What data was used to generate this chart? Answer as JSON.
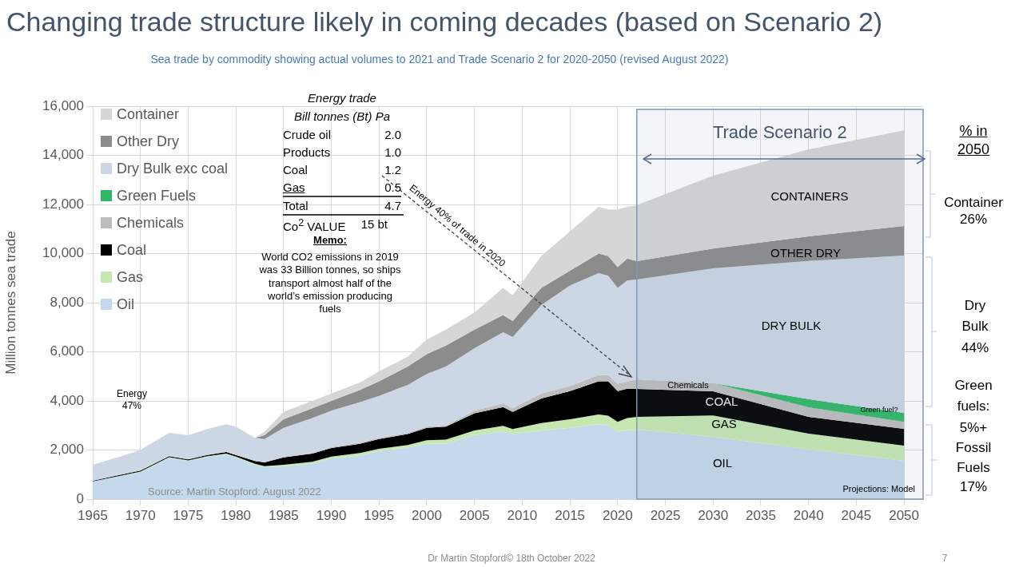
{
  "chart_data": {
    "type": "area",
    "title": "Changing trade structure likely in coming decades (based on Scenario 2)",
    "subtitle": "Sea trade by commodity showing actual volumes to 2021 and Trade Scenario 2 for 2020-2050 (revised August 2022)",
    "ylabel": "Million tonnes sea trade",
    "stacked": true,
    "grid": true,
    "legend": "top left",
    "x": [
      1965,
      1968,
      1970,
      1973,
      1975,
      1977,
      1979,
      1980,
      1982,
      1983,
      1985,
      1988,
      1990,
      1993,
      1995,
      1998,
      2000,
      2002,
      2005,
      2008,
      2009,
      2012,
      2015,
      2018,
      2019,
      2020,
      2021,
      2022,
      2030,
      2040,
      2050
    ],
    "series": [
      {
        "name": "Oil",
        "color": "#c5d9ec",
        "values": [
          720,
          950,
          1100,
          1680,
          1550,
          1720,
          1820,
          1700,
          1400,
          1300,
          1330,
          1450,
          1650,
          1780,
          1950,
          2100,
          2250,
          2250,
          2600,
          2750,
          2650,
          2800,
          2900,
          3050,
          3000,
          2750,
          2800,
          2830,
          2540,
          2020,
          1560
        ]
      },
      {
        "name": "Gas",
        "color": "#c6e8b0",
        "values": [
          0,
          10,
          20,
          30,
          30,
          30,
          30,
          30,
          40,
          40,
          70,
          70,
          80,
          100,
          100,
          100,
          150,
          170,
          200,
          230,
          200,
          300,
          350,
          400,
          400,
          400,
          500,
          520,
          870,
          650,
          620
        ]
      },
      {
        "name": "Coal",
        "color": "#000000",
        "values": [
          30,
          40,
          40,
          40,
          40,
          50,
          70,
          70,
          110,
          160,
          300,
          330,
          350,
          370,
          400,
          450,
          500,
          530,
          700,
          770,
          700,
          1000,
          1150,
          1350,
          1400,
          1250,
          1200,
          1140,
          980,
          680,
          680
        ]
      },
      {
        "name": "Chemicals",
        "color": "#bdbdbd",
        "values": [
          null,
          null,
          null,
          null,
          null,
          null,
          null,
          null,
          null,
          0,
          30,
          30,
          40,
          50,
          50,
          50,
          50,
          50,
          100,
          150,
          150,
          200,
          200,
          250,
          250,
          300,
          300,
          390,
          330,
          390,
          290
        ]
      },
      {
        "name": "Green Fuels",
        "color": "#2fb866",
        "values": [
          null,
          null,
          null,
          null,
          null,
          null,
          null,
          null,
          null,
          null,
          null,
          null,
          null,
          null,
          null,
          null,
          null,
          null,
          null,
          null,
          null,
          null,
          null,
          null,
          null,
          null,
          null,
          null,
          0,
          330,
          360
        ]
      },
      {
        "name": "Dry Bulk exc coal",
        "color": "#ccd6e4",
        "values": [
          650,
          750,
          840,
          950,
          980,
          1050,
          1130,
          1150,
          950,
          950,
          1170,
          1420,
          1480,
          1650,
          1700,
          1950,
          2150,
          2400,
          2550,
          2900,
          2900,
          3600,
          4100,
          4150,
          4050,
          3900,
          4100,
          4060,
          4680,
          5630,
          6410
        ]
      },
      {
        "name": "Other Dry",
        "color": "#8c8c8c",
        "values": [
          null,
          null,
          null,
          null,
          null,
          null,
          null,
          null,
          0,
          150,
          350,
          400,
          400,
          500,
          600,
          750,
          800,
          850,
          750,
          700,
          650,
          700,
          600,
          800,
          800,
          850,
          900,
          750,
          800,
          1000,
          1200
        ]
      },
      {
        "name": "Container",
        "color": "#d6d6d6",
        "values": [
          null,
          null,
          null,
          null,
          null,
          null,
          null,
          null,
          0,
          150,
          300,
          300,
          300,
          300,
          400,
          400,
          600,
          650,
          700,
          1100,
          1050,
          1300,
          1600,
          1900,
          1900,
          2350,
          2100,
          2280,
          2970,
          3540,
          3900
        ]
      }
    ],
    "xlim": [
      1965,
      2052
    ],
    "xticks": [
      1965,
      1970,
      1975,
      1980,
      1985,
      1990,
      1995,
      2000,
      2005,
      2010,
      2015,
      2020,
      2025,
      2030,
      2035,
      2040,
      2045,
      2050
    ],
    "ylim": [
      0,
      16000
    ],
    "yticks": [
      {
        "value": 0,
        "label": "0"
      },
      {
        "value": 2000,
        "label": "2,000"
      },
      {
        "value": 4000,
        "label": "4,000"
      },
      {
        "value": 6000,
        "label": "6,000"
      },
      {
        "value": 8000,
        "label": "8,000"
      },
      {
        "value": 10000,
        "label": "10,000"
      },
      {
        "value": 12000,
        "label": "12,000"
      },
      {
        "value": 14000,
        "label": "14,000"
      },
      {
        "value": 16000,
        "label": "16,000"
      }
    ],
    "bands": [
      {
        "axis": "x",
        "from": 2022,
        "to": 2052,
        "label": "Trade Scenario 2",
        "color": "#8497b0"
      }
    ],
    "annotations": [
      "Energy trade",
      "Bill tonnes (Bt) Pa",
      "Crude oil",
      "2.0",
      "Products",
      "1.0",
      "Coal",
      "1.2",
      "Gas",
      "0.5",
      "Total",
      "4.7",
      "Co$^{2}$ VALUE",
      "15 bt",
      "Memo:",
      "World CO2 emissions in 2019 was 33 Billion tonnes, so ships transport almost half of the world’s emission producing fuels",
      "Energy 47%",
      "Energy 40% of trade in 2020",
      "Source: Martin Stopford: August 2022",
      "Projections: Model",
      "% in 2050",
      "Container 26%",
      "Dry Bulk 44%",
      "Green fuels: 5%+",
      "Fossil Fuels 17%",
      "Dr Martin Stopford© 18th October 2022",
      "7",
      "CONTAINERS",
      "OTHER DRY",
      "DRY BULK",
      "Chemicals",
      "COAL",
      "GAS",
      "OIL",
      "Green fuel?"
    ]
  }
}
